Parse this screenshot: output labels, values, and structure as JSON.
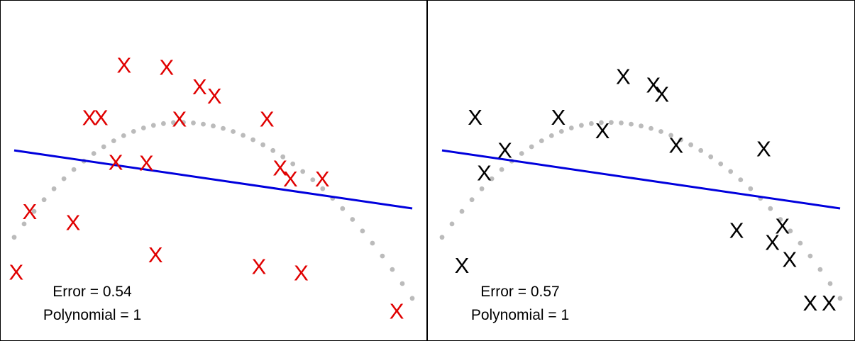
{
  "chart_data": [
    {
      "type": "scatter",
      "panel": "left",
      "marker": "X",
      "marker_color": "#e00000",
      "fit_line_color": "#0000dd",
      "curve_color": "#bbbbbb",
      "annotations": {
        "error_label": "Error =  0.54",
        "polynomial_label": "Polynomial = 1"
      },
      "points": [
        {
          "x": 0.276,
          "y": 0.882
        },
        {
          "x": 0.383,
          "y": 0.875
        },
        {
          "x": 0.466,
          "y": 0.809
        },
        {
          "x": 0.503,
          "y": 0.778
        },
        {
          "x": 0.189,
          "y": 0.706
        },
        {
          "x": 0.218,
          "y": 0.706
        },
        {
          "x": 0.415,
          "y": 0.701
        },
        {
          "x": 0.635,
          "y": 0.701
        },
        {
          "x": 0.255,
          "y": 0.556
        },
        {
          "x": 0.332,
          "y": 0.554
        },
        {
          "x": 0.668,
          "y": 0.537
        },
        {
          "x": 0.694,
          "y": 0.5
        },
        {
          "x": 0.774,
          "y": 0.5
        },
        {
          "x": 0.039,
          "y": 0.39
        },
        {
          "x": 0.148,
          "y": 0.354
        },
        {
          "x": 0.355,
          "y": 0.245
        },
        {
          "x": 0.615,
          "y": 0.206
        },
        {
          "x": 0.721,
          "y": 0.184
        },
        {
          "x": 0.005,
          "y": 0.187
        },
        {
          "x": 0.961,
          "y": 0.056
        }
      ],
      "fit_line": {
        "x": [
          0.0,
          1.0
        ],
        "y": [
          0.595,
          0.4
        ]
      },
      "curve": {
        "x_range": [
          0.0,
          1.0
        ],
        "peak_x": 0.417,
        "peak_y": 0.689,
        "end_y_left": 0.303,
        "end_y_right": 0.098
      }
    },
    {
      "type": "scatter",
      "panel": "right",
      "marker": "X",
      "marker_color": "#000000",
      "fit_line_color": "#0000dd",
      "curve_color": "#bbbbbb",
      "annotations": {
        "error_label": "Error =  0.57",
        "polynomial_label": "Polynomial = 1"
      },
      "points": [
        {
          "x": 0.455,
          "y": 0.844
        },
        {
          "x": 0.531,
          "y": 0.816
        },
        {
          "x": 0.552,
          "y": 0.785
        },
        {
          "x": 0.083,
          "y": 0.707
        },
        {
          "x": 0.292,
          "y": 0.707
        },
        {
          "x": 0.403,
          "y": 0.662
        },
        {
          "x": 0.588,
          "y": 0.613
        },
        {
          "x": 0.808,
          "y": 0.601
        },
        {
          "x": 0.158,
          "y": 0.596
        },
        {
          "x": 0.106,
          "y": 0.52
        },
        {
          "x": 0.74,
          "y": 0.327
        },
        {
          "x": 0.855,
          "y": 0.342
        },
        {
          "x": 0.83,
          "y": 0.287
        },
        {
          "x": 0.873,
          "y": 0.23
        },
        {
          "x": 0.05,
          "y": 0.209
        },
        {
          "x": 0.925,
          "y": 0.083
        },
        {
          "x": 0.972,
          "y": 0.083
        }
      ],
      "fit_line": {
        "x": [
          0.0,
          1.0
        ],
        "y": [
          0.595,
          0.4
        ]
      },
      "curve": {
        "x_range": [
          0.0,
          1.0
        ],
        "peak_x": 0.417,
        "peak_y": 0.689,
        "end_y_left": 0.303,
        "end_y_right": 0.098
      }
    }
  ]
}
